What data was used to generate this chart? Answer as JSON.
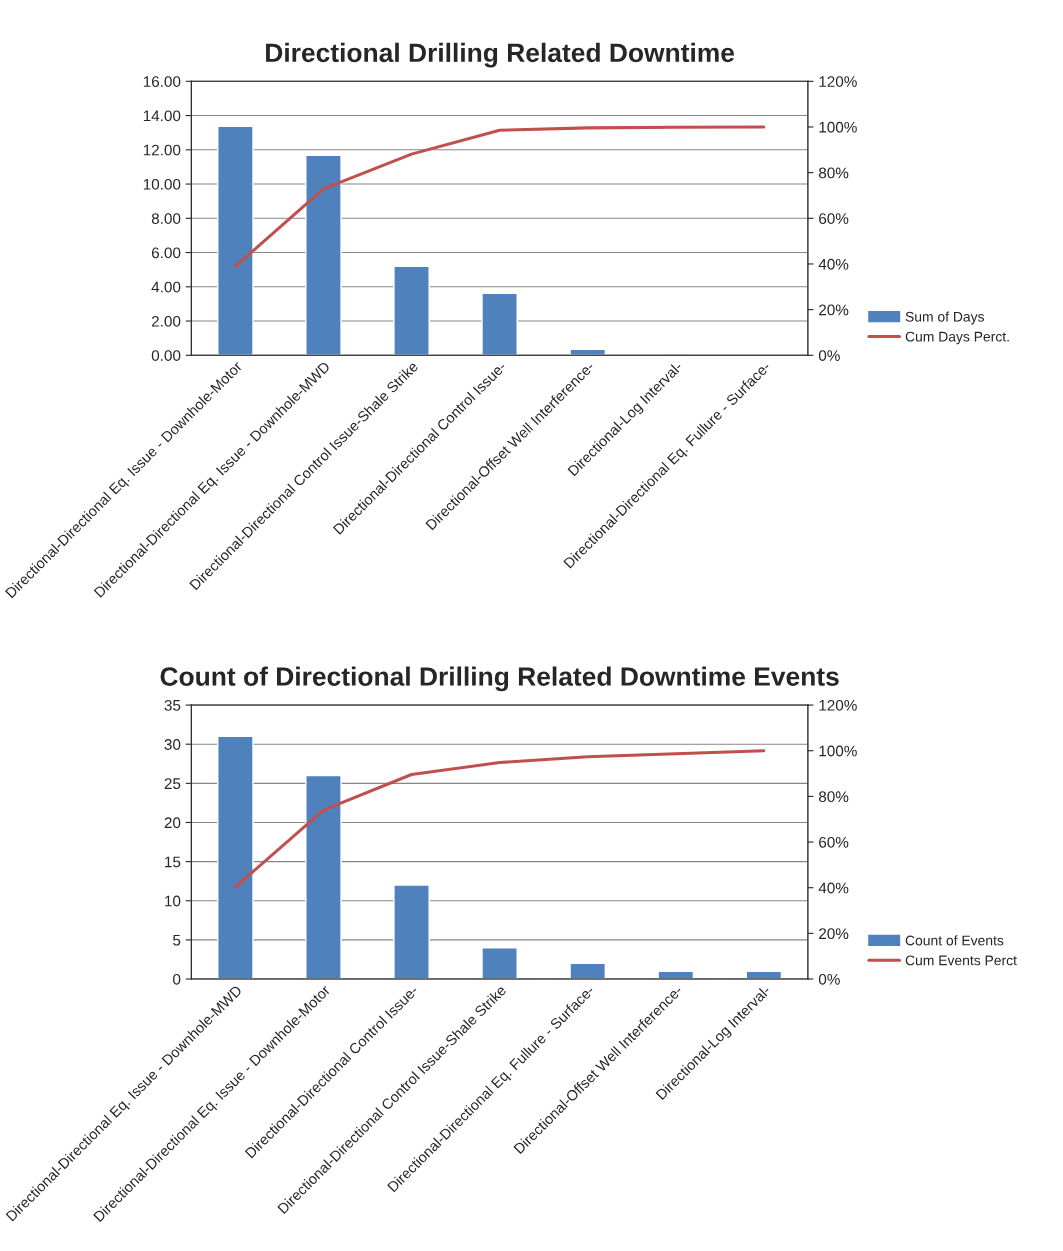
{
  "chart_data": [
    {
      "type": "bar",
      "title": "Directional Drilling Related Downtime",
      "categories": [
        "Directional-Directional Eq. Issue - Downhole-Motor",
        "Directional-Directional Eq. Issue - Downhole-MWD",
        "Directional-Directional Control Issue-Shale Strike",
        "Directional-Directional Control Issue-",
        "Directional-Offset Well Interference-",
        "Directional-Log Interval-",
        "Directional-Directional Eq. Fullure - Surface-"
      ],
      "series": [
        {
          "name": "Sum of Days",
          "color": "#4f81bd",
          "values": [
            13.37,
            11.68,
            5.2,
            3.62,
            0.35,
            0.1,
            null
          ]
        },
        {
          "name": "Cum Days Perct.",
          "type": "line",
          "axis": "y2",
          "color": "#c0504d",
          "values": [
            38.9,
            72.9,
            88.1,
            98.6,
            99.6,
            99.9,
            100
          ]
        }
      ],
      "ylim": [
        0,
        16
      ],
      "yticks": [
        {
          "value": 0,
          "label": "0.00"
        },
        {
          "value": 2,
          "label": "2.00"
        },
        {
          "value": 4,
          "label": "4.00"
        },
        {
          "value": 6,
          "label": "6.00"
        },
        {
          "value": 8,
          "label": "8.00"
        },
        {
          "value": 10,
          "label": "10.00"
        },
        {
          "value": 12,
          "label": "12.00"
        },
        {
          "value": 14,
          "label": "14.00"
        },
        {
          "value": 16,
          "label": "16.00"
        }
      ],
      "y2lim": [
        0,
        120
      ],
      "y2ticks": [
        {
          "value": 0,
          "label": "0%"
        },
        {
          "value": 20,
          "label": "20%"
        },
        {
          "value": 40,
          "label": "40%"
        },
        {
          "value": 60,
          "label": "60%"
        },
        {
          "value": 80,
          "label": "80%"
        },
        {
          "value": 100,
          "label": "100%"
        },
        {
          "value": 120,
          "label": "120%"
        }
      ],
      "grid": "y",
      "legend": "right"
    },
    {
      "type": "bar",
      "title": "Count of Directional Drilling Related Downtime Events",
      "categories": [
        "Directional-Directional Eq. Issue - Downhole-MWD",
        "Directional-Directional Eq. Issue - Downhole-Motor",
        "Directional-Directional Control Issue-",
        "Directional-Directional Control Issue-Shale Strike",
        "Directional-Directional Eq. Fullure - Surface-",
        "Directional-Offset Well Interference-",
        "Directional-Log Interval-"
      ],
      "series": [
        {
          "name": "Count of Events",
          "color": "#4f81bd",
          "values": [
            31,
            26,
            12,
            4,
            2,
            1,
            1
          ]
        },
        {
          "name": "Cum Events Perct",
          "type": "line",
          "axis": "y2",
          "color": "#c0504d",
          "values": [
            40.3,
            74.0,
            89.6,
            94.8,
            97.4,
            98.7,
            100
          ]
        }
      ],
      "ylim": [
        0,
        35
      ],
      "yticks": [
        0,
        5,
        10,
        15,
        20,
        25,
        30,
        35
      ],
      "y2lim": [
        0,
        120
      ],
      "y2ticks": [
        {
          "value": 0,
          "label": "0%"
        },
        {
          "value": 20,
          "label": "20%"
        },
        {
          "value": 40,
          "label": "40%"
        },
        {
          "value": 60,
          "label": "60%"
        },
        {
          "value": 80,
          "label": "80%"
        },
        {
          "value": 100,
          "label": "100%"
        },
        {
          "value": 120,
          "label": "120%"
        }
      ],
      "grid": "y",
      "legend": "right"
    }
  ]
}
